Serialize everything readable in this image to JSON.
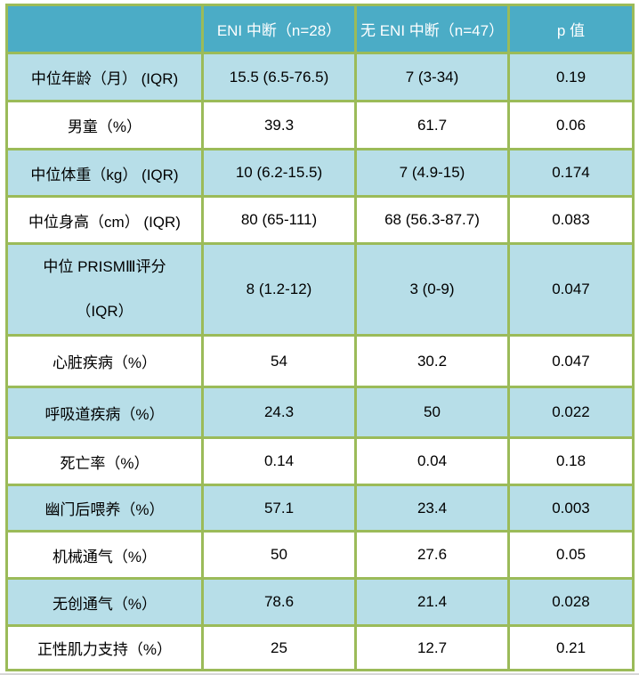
{
  "table": {
    "columns": [
      "",
      "ENI 中断（n=28）",
      "无 ENI 中断（n=47）",
      "p 值"
    ],
    "rows": [
      {
        "label": "中位年龄（月） (IQR)",
        "eni": "15.5 (6.5-76.5)",
        "no_eni": "7 (3-34)",
        "p": "0.19"
      },
      {
        "label": "男童（%）",
        "eni": "39.3",
        "no_eni": "61.7",
        "p": "0.06"
      },
      {
        "label": "中位体重（kg） (IQR)",
        "eni": "10 (6.2-15.5)",
        "no_eni": "7 (4.9-15)",
        "p": "0.174"
      },
      {
        "label": "中位身高（cm） (IQR)",
        "eni": "80 (65-111)",
        "no_eni": "68 (56.3-87.7)",
        "p": "0.083"
      },
      {
        "label": "中位 PRISMⅢ评分\n（IQR）",
        "tall": true,
        "eni": "8 (1.2-12)",
        "no_eni": "3 (0-9)",
        "p": "0.047"
      },
      {
        "label": "心脏疾病（%）",
        "eni": "54",
        "no_eni": "30.2",
        "p": "0.047"
      },
      {
        "label": "呼吸道疾病（%）",
        "eni": "24.3",
        "no_eni": "50",
        "p": "0.022"
      },
      {
        "label": "死亡率（%）",
        "eni": "0.14",
        "no_eni": "0.04",
        "p": "0.18"
      },
      {
        "label": "幽门后喂养（%）",
        "eni": "57.1",
        "no_eni": "23.4",
        "p": "0.003"
      },
      {
        "label": "机械通气（%）",
        "eni": "50",
        "no_eni": "27.6",
        "p": "0.05"
      },
      {
        "label": "无创通气（%）",
        "eni": "78.6",
        "no_eni": "21.4",
        "p": "0.028"
      },
      {
        "label": "正性肌力支持（%）",
        "eni": "25",
        "no_eni": "12.7",
        "p": "0.21"
      }
    ],
    "colors": {
      "header_bg": "#4BACC6",
      "header_text": "#FFFFFF",
      "alt_row_bg": "#B7DEE8",
      "row_bg": "#FFFFFF",
      "border": "#9BBB59",
      "body_text": "#000000"
    }
  }
}
